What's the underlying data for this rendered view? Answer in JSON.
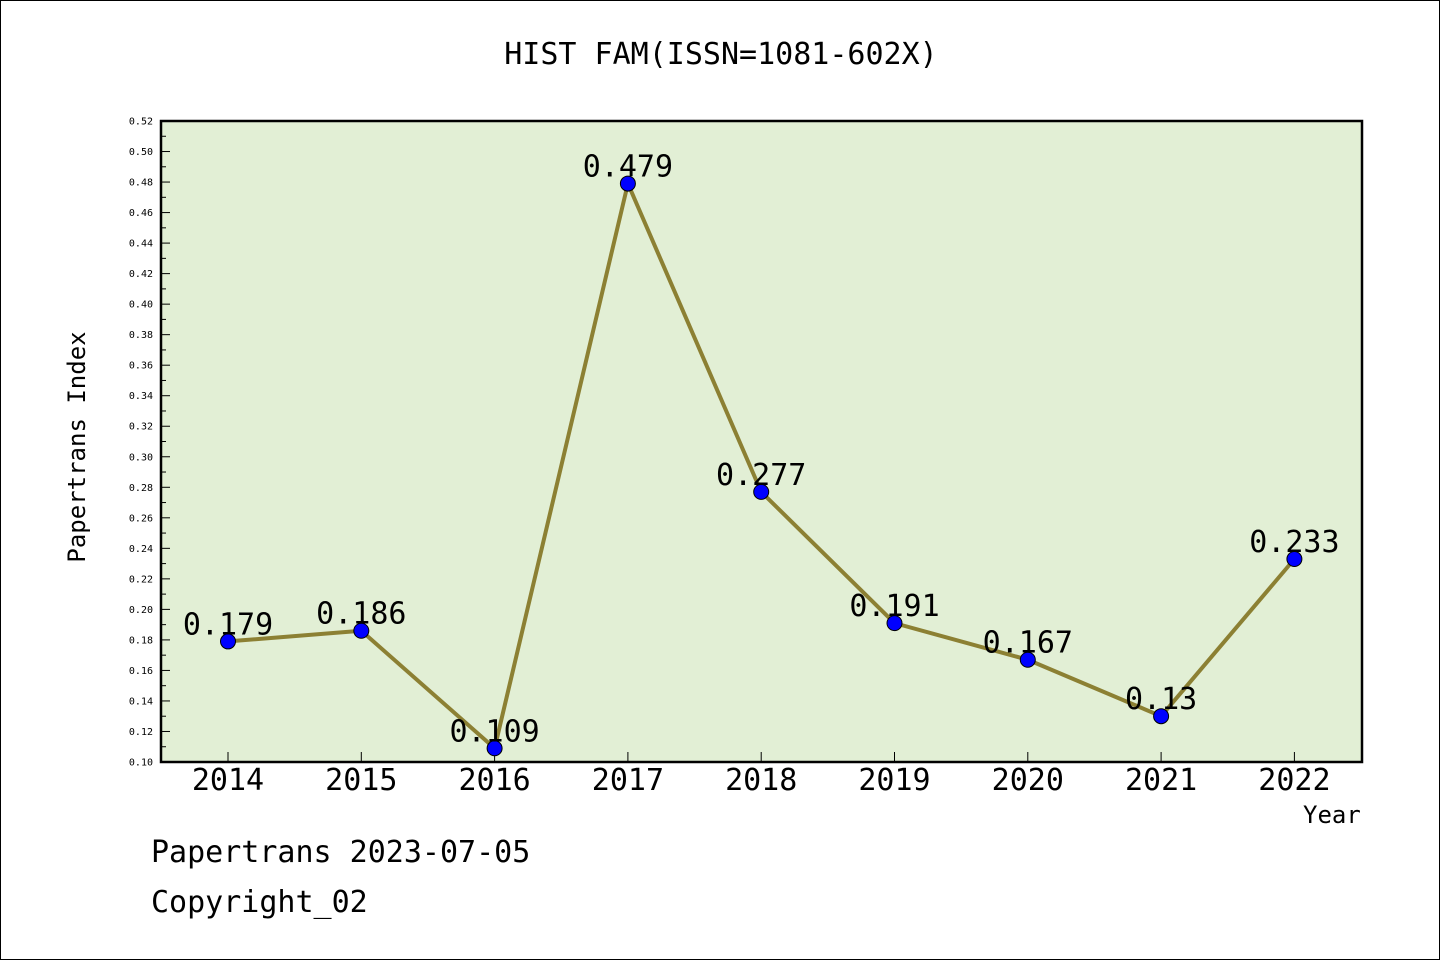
{
  "chart_data": {
    "type": "line",
    "title": "HIST FAM(ISSN=1081-602X)",
    "xlabel": "Year",
    "ylabel": "Papertrans Index",
    "categories": [
      "2014",
      "2015",
      "2016",
      "2017",
      "2018",
      "2019",
      "2020",
      "2021",
      "2022"
    ],
    "series": [
      {
        "values": [
          0.179,
          0.186,
          0.109,
          0.479,
          0.277,
          0.191,
          0.167,
          0.13,
          0.233
        ],
        "point_labels": [
          "0.179",
          "0.186",
          "0.109",
          "0.479",
          "0.277",
          "0.191",
          "0.167",
          "0.13",
          "0.233"
        ]
      }
    ],
    "ylim": [
      0.1,
      0.52
    ],
    "yticks": [
      "0.10",
      "0.12",
      "0.14",
      "0.16",
      "0.18",
      "0.20",
      "0.22",
      "0.24",
      "0.26",
      "0.28",
      "0.30",
      "0.32",
      "0.34",
      "0.36",
      "0.38",
      "0.40",
      "0.42",
      "0.44",
      "0.46",
      "0.48",
      "0.50",
      "0.52"
    ],
    "grid": false,
    "colors": {
      "plot_background": "#e2efd5",
      "line": "#8c8033",
      "marker": "#0000ff"
    }
  },
  "footer": {
    "line1": "Papertrans 2023-07-05",
    "line2": "Copyright_02"
  }
}
